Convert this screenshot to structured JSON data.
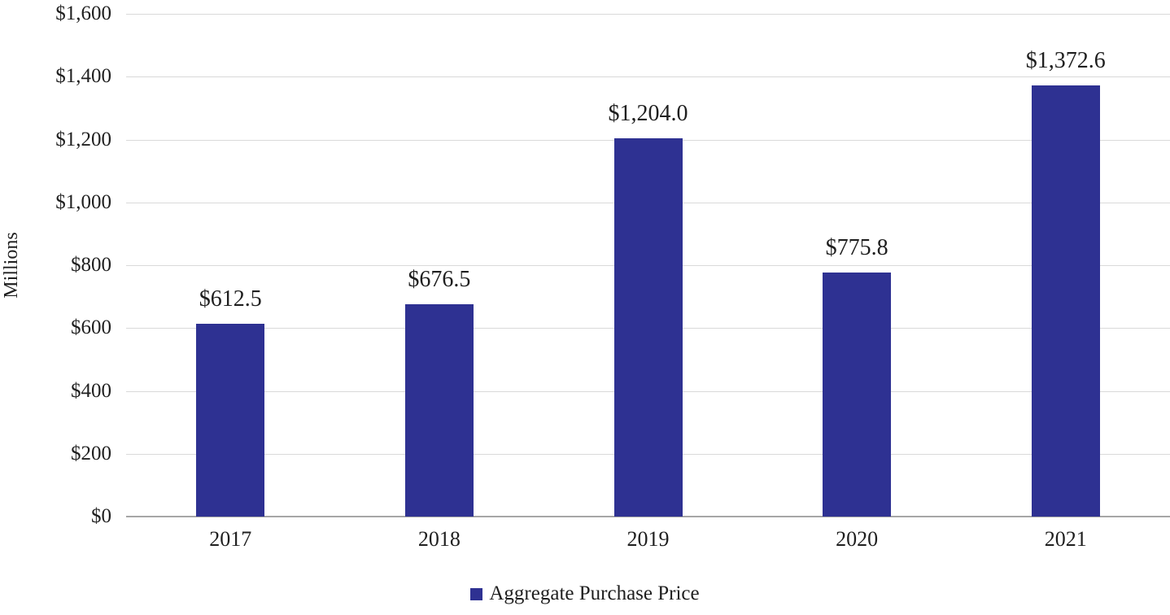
{
  "chart_data": {
    "type": "bar",
    "categories": [
      "2017",
      "2018",
      "2019",
      "2020",
      "2021"
    ],
    "values": [
      612.5,
      676.5,
      1204.0,
      775.8,
      1372.6
    ],
    "data_labels": [
      "$612.5",
      "$676.5",
      "$1,204.0",
      "$775.8",
      "$1,372.6"
    ],
    "title": "",
    "xlabel": "",
    "ylabel": "Millions",
    "ylim": [
      0,
      1600
    ],
    "ytick_step": 200,
    "ytick_labels": [
      "$0",
      "$200",
      "$400",
      "$600",
      "$800",
      "$1,000",
      "$1,200",
      "$1,400",
      "$1,600"
    ],
    "legend": [
      "Aggregate Purchase Price"
    ],
    "legend_position": "bottom",
    "grid": true
  },
  "colors": {
    "bar": "#2E3192",
    "gridline": "#d9d9d9",
    "axis": "#a6a6a6",
    "text": "#1f1f1f"
  }
}
